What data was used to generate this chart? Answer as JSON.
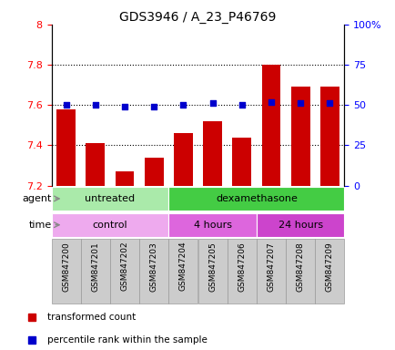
{
  "title": "GDS3946 / A_23_P46769",
  "samples": [
    "GSM847200",
    "GSM847201",
    "GSM847202",
    "GSM847203",
    "GSM847204",
    "GSM847205",
    "GSM847206",
    "GSM847207",
    "GSM847208",
    "GSM847209"
  ],
  "transformed_count": [
    7.58,
    7.41,
    7.27,
    7.34,
    7.46,
    7.52,
    7.44,
    7.8,
    7.69,
    7.69
  ],
  "percentile_rank": [
    50,
    50,
    49,
    49,
    50,
    51,
    50,
    52,
    51,
    51
  ],
  "ylim_left": [
    7.2,
    8.0
  ],
  "ylim_right": [
    0,
    100
  ],
  "yticks_left": [
    7.2,
    7.4,
    7.6,
    7.8,
    8.0
  ],
  "ytick_labels_left": [
    "7.2",
    "7.4",
    "7.6",
    "7.8",
    "8"
  ],
  "yticks_right": [
    0,
    25,
    50,
    75,
    100
  ],
  "ytick_labels_right": [
    "0",
    "25",
    "50",
    "75",
    "100%"
  ],
  "bar_color": "#cc0000",
  "dot_color": "#0000cc",
  "grid_dotted_values": [
    7.4,
    7.6,
    7.8
  ],
  "agent_groups": [
    {
      "label": "untreated",
      "start": 0,
      "end": 4,
      "color": "#aaeaaa"
    },
    {
      "label": "dexamethasone",
      "start": 4,
      "end": 10,
      "color": "#44cc44"
    }
  ],
  "time_groups": [
    {
      "label": "control",
      "start": 0,
      "end": 4,
      "color": "#eeaaee"
    },
    {
      "label": "4 hours",
      "start": 4,
      "end": 7,
      "color": "#dd66dd"
    },
    {
      "label": "24 hours",
      "start": 7,
      "end": 10,
      "color": "#cc44cc"
    }
  ],
  "legend_items": [
    {
      "label": "transformed count",
      "color": "#cc0000"
    },
    {
      "label": "percentile rank within the sample",
      "color": "#0000cc"
    }
  ],
  "bar_bottom": 7.2,
  "bar_width": 0.65,
  "sample_box_color": "#cccccc",
  "sample_box_edge": "#999999"
}
